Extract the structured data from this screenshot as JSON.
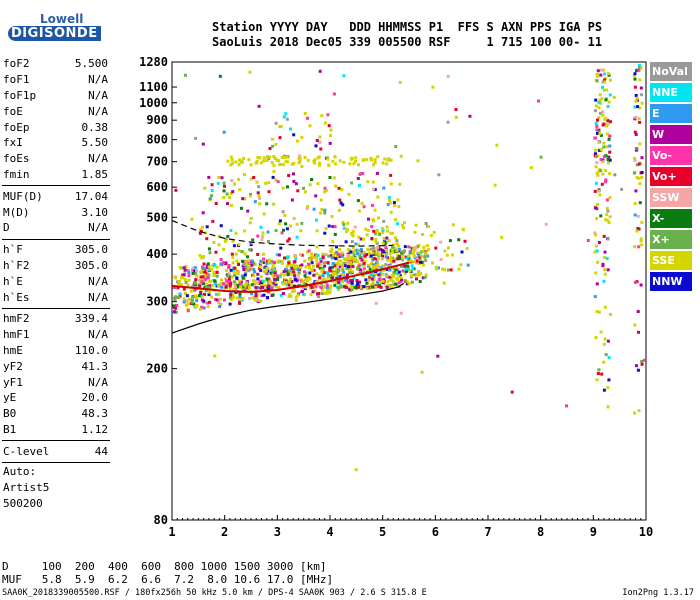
{
  "brand": {
    "top": "Lowell",
    "bottom": "DIGISONDE"
  },
  "header": {
    "line1": "Station YYYY DAY   DDD HHMMSS P1  FFS S AXN PPS IGA PS",
    "line2": "SaoLuis 2018 Dec05 339 005500 RSF     1 715 100 00- 11"
  },
  "params": [
    {
      "k": "foF2",
      "v": "5.500"
    },
    {
      "k": "foF1",
      "v": "N/A"
    },
    {
      "k": "foF1p",
      "v": "N/A"
    },
    {
      "k": "foE",
      "v": "N/A"
    },
    {
      "k": "foEp",
      "v": "0.38"
    },
    {
      "k": "fxI",
      "v": "5.50"
    },
    {
      "k": "foEs",
      "v": "N/A"
    },
    {
      "k": "fmin",
      "v": "1.85"
    },
    {
      "k": "MUF(D)",
      "v": "17.04"
    },
    {
      "k": "M(D)",
      "v": "3.10"
    },
    {
      "k": "D",
      "v": "N/A"
    },
    {
      "k": "h`F",
      "v": "305.0"
    },
    {
      "k": "h`F2",
      "v": "305.0"
    },
    {
      "k": "h`E",
      "v": "N/A"
    },
    {
      "k": "h`Es",
      "v": "N/A"
    },
    {
      "k": "hmF2",
      "v": "339.4"
    },
    {
      "k": "hmF1",
      "v": "N/A"
    },
    {
      "k": "hmE",
      "v": "110.0"
    },
    {
      "k": "yF2",
      "v": "41.3"
    },
    {
      "k": "yF1",
      "v": "N/A"
    },
    {
      "k": "yE",
      "v": "20.0"
    },
    {
      "k": "B0",
      "v": "48.3"
    },
    {
      "k": "B1",
      "v": "1.12"
    },
    {
      "k": "C-level",
      "v": "44"
    }
  ],
  "extra": [
    "Auto:",
    "Artist5",
    "500200"
  ],
  "legend": [
    {
      "label": "NoVal",
      "color": "#9a9a9a"
    },
    {
      "label": "NNE",
      "color": "#00e5f0"
    },
    {
      "label": "E",
      "color": "#2f9bf0"
    },
    {
      "label": "W",
      "color": "#b0009c"
    },
    {
      "label": "Vo-",
      "color": "#ff33aa"
    },
    {
      "label": "Vo+",
      "color": "#e8002a"
    },
    {
      "label": "SSW",
      "color": "#f5a6a6"
    },
    {
      "label": "X-",
      "color": "#0b7d10"
    },
    {
      "label": "X+",
      "color": "#6ab04c"
    },
    {
      "label": "SSE",
      "color": "#d4d400"
    },
    {
      "label": "NNW",
      "color": "#0a0ad0"
    }
  ],
  "bottom": {
    "d_line": "D     100  200  400  600  800 1000 1500 3000 [km]",
    "muf_line": "MUF   5.8  5.9  6.2  6.6  7.2  8.0 10.6 17.0 [MHz]"
  },
  "footer": "SAA0K_2018339005500.RSF / 180fx256h 50 kHz 5.0 km / DPS-4 SAA0K 903 / 2.6 S 315.8 E",
  "version": "Ion2Png 1.3.17",
  "chart_data": {
    "type": "scatter",
    "xlim": [
      1,
      10
    ],
    "ylim": [
      80,
      1280
    ],
    "yscale": "log",
    "xticks": [
      1,
      2,
      3,
      4,
      5,
      6,
      7,
      8,
      9,
      10
    ],
    "yticks": [
      80,
      200,
      300,
      400,
      500,
      600,
      700,
      800,
      900,
      1000,
      1100,
      1280
    ],
    "profile": {
      "x": [
        1.0,
        1.5,
        2.0,
        2.5,
        3.0,
        3.5,
        4.0,
        4.5,
        5.0,
        5.5
      ],
      "y": [
        330,
        325,
        320,
        318,
        322,
        330,
        340,
        352,
        365,
        380
      ]
    },
    "lower_curve": {
      "x": [
        1.0,
        1.5,
        2.0,
        2.5,
        3.0,
        3.5,
        4.0,
        4.5,
        5.0,
        5.3,
        5.4
      ],
      "y": [
        248,
        262,
        275,
        285,
        292,
        298,
        305,
        312,
        320,
        328,
        335
      ]
    },
    "dashed_curve": {
      "x": [
        1.0,
        1.5,
        2.0,
        2.5,
        3.0,
        3.5,
        4.0,
        4.5,
        5.0,
        5.2
      ],
      "y": [
        490,
        460,
        440,
        430,
        425,
        422,
        421,
        420,
        421,
        422
      ]
    }
  }
}
